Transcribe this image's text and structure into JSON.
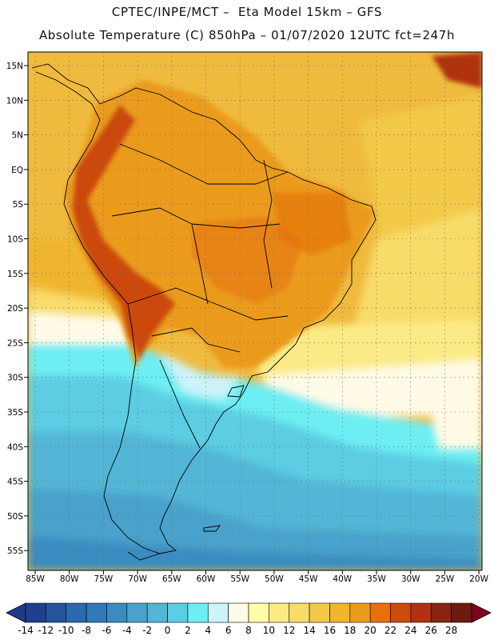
{
  "header": {
    "line1": "CPTEC/INPE/MCT –  Eta Model 15km – GFS",
    "line2": "Absolute Temperature (C) 850hPa – 01/07/2020 12UTC fct=247h"
  },
  "map": {
    "lat_labels": [
      "15N",
      "10N",
      "5N",
      "EQ",
      "5S",
      "10S",
      "15S",
      "20S",
      "25S",
      "30S",
      "35S",
      "40S",
      "45S",
      "50S",
      "55S"
    ],
    "lon_labels": [
      "85W",
      "80W",
      "75W",
      "70W",
      "65W",
      "60W",
      "55W",
      "50W",
      "45W",
      "40W",
      "35W",
      "30W",
      "25W",
      "20W"
    ]
  },
  "colorbar": {
    "labels": [
      "-14",
      "-12",
      "-10",
      "-8",
      "-6",
      "-4",
      "-2",
      "0",
      "2",
      "4",
      "6",
      "8",
      "10",
      "12",
      "14",
      "16",
      "18",
      "20",
      "22",
      "24",
      "26",
      "28"
    ],
    "colors": [
      "#1f3f8f",
      "#26559e",
      "#2b6aad",
      "#3079b6",
      "#3a8cc0",
      "#48a2cb",
      "#52b6d6",
      "#5ccde3",
      "#6deef2",
      "#cef3fa",
      "#fffbe6",
      "#fffca8",
      "#fbeb86",
      "#f8dc69",
      "#f3c94a",
      "#f0b52d",
      "#eb9b1b",
      "#e5700c",
      "#cc4a0c",
      "#b03110",
      "#8a2413",
      "#6d1b10"
    ],
    "under_color": "#1f3a8a",
    "over_color": "#800020"
  }
}
